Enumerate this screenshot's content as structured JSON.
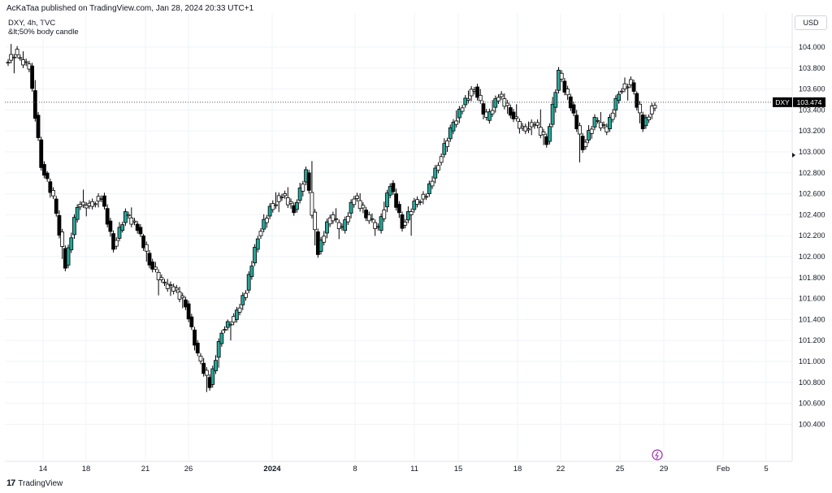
{
  "header": {
    "publisher_line": "AcKaTaa published on TradingView.com, Jan 28, 2024 20:33 UTC+1"
  },
  "legend": {
    "line1": "DXY, 4h, TVC",
    "line2": "&lt;50% body candle"
  },
  "price_axis": {
    "currency_label": "USD"
  },
  "last_price": {
    "symbol": "DXY",
    "value": "103.474"
  },
  "footer": {
    "brand": "TradingView",
    "logo": "tradingview-logo-icon"
  },
  "colors": {
    "bull_fill": "#26a69a",
    "bear_fill": "#000000",
    "neutral_fill": "#ffffff",
    "wick": "#000000",
    "grid": "#f0f3fa"
  },
  "chart_data": {
    "type": "candlestick",
    "timeframe": "4h",
    "symbol": "DXY",
    "ylim": [
      100.3,
      104.45
    ],
    "y_ticks": [
      "104.000",
      "103.800",
      "103.600",
      "103.400",
      "103.200",
      "103.000",
      "102.800",
      "102.600",
      "102.400",
      "102.200",
      "102.000",
      "101.800",
      "101.600",
      "101.400",
      "101.200",
      "101.000",
      "100.800",
      "100.600",
      "100.400"
    ],
    "x_ticks": [
      "14",
      "18",
      "21",
      "26",
      "2024",
      "8",
      "11",
      "15",
      "18",
      "22",
      "25",
      "29",
      "Feb",
      "5"
    ],
    "last_price": 103.474,
    "ohlc_daily_approx": [
      {
        "o": 103.85,
        "h": 104.05,
        "l": 103.7,
        "c": 103.95
      },
      {
        "o": 103.9,
        "h": 103.98,
        "l": 103.78,
        "c": 103.82
      },
      {
        "o": 103.82,
        "h": 103.92,
        "l": 102.85,
        "c": 102.88
      },
      {
        "o": 102.88,
        "h": 102.9,
        "l": 102.5,
        "c": 102.55
      },
      {
        "o": 102.55,
        "h": 102.6,
        "l": 101.8,
        "c": 101.92
      },
      {
        "o": 101.92,
        "h": 102.55,
        "l": 101.88,
        "c": 102.5
      },
      {
        "o": 102.5,
        "h": 102.62,
        "l": 102.4,
        "c": 102.48
      },
      {
        "o": 102.48,
        "h": 102.6,
        "l": 102.42,
        "c": 102.58
      },
      {
        "o": 102.58,
        "h": 102.62,
        "l": 102.05,
        "c": 102.1
      },
      {
        "o": 102.1,
        "h": 102.45,
        "l": 102.08,
        "c": 102.4
      },
      {
        "o": 102.4,
        "h": 102.5,
        "l": 102.25,
        "c": 102.28
      },
      {
        "o": 102.28,
        "h": 102.3,
        "l": 101.85,
        "c": 101.95
      },
      {
        "o": 101.95,
        "h": 102.0,
        "l": 101.6,
        "c": 101.75
      },
      {
        "o": 101.75,
        "h": 101.8,
        "l": 101.6,
        "c": 101.7
      },
      {
        "o": 101.7,
        "h": 101.75,
        "l": 101.45,
        "c": 101.55
      },
      {
        "o": 101.55,
        "h": 101.58,
        "l": 101.0,
        "c": 101.05
      },
      {
        "o": 101.05,
        "h": 101.1,
        "l": 100.62,
        "c": 100.78
      },
      {
        "o": 100.78,
        "h": 101.35,
        "l": 100.68,
        "c": 101.3
      },
      {
        "o": 101.3,
        "h": 101.42,
        "l": 101.15,
        "c": 101.4
      },
      {
        "o": 101.4,
        "h": 101.72,
        "l": 101.35,
        "c": 101.68
      },
      {
        "o": 101.68,
        "h": 102.25,
        "l": 101.65,
        "c": 102.2
      },
      {
        "o": 102.2,
        "h": 102.5,
        "l": 102.15,
        "c": 102.45
      },
      {
        "o": 102.45,
        "h": 102.72,
        "l": 102.35,
        "c": 102.6
      },
      {
        "o": 102.6,
        "h": 102.7,
        "l": 102.4,
        "c": 102.45
      },
      {
        "o": 102.45,
        "h": 102.85,
        "l": 102.4,
        "c": 102.8
      },
      {
        "o": 102.8,
        "h": 103.1,
        "l": 101.9,
        "c": 102.05
      },
      {
        "o": 102.05,
        "h": 102.45,
        "l": 102.0,
        "c": 102.4
      },
      {
        "o": 102.4,
        "h": 102.5,
        "l": 102.15,
        "c": 102.25
      },
      {
        "o": 102.25,
        "h": 102.62,
        "l": 102.2,
        "c": 102.58
      },
      {
        "o": 102.58,
        "h": 102.65,
        "l": 102.35,
        "c": 102.4
      },
      {
        "o": 102.4,
        "h": 102.45,
        "l": 102.18,
        "c": 102.25
      },
      {
        "o": 102.25,
        "h": 102.78,
        "l": 102.2,
        "c": 102.7
      },
      {
        "o": 102.7,
        "h": 102.75,
        "l": 102.25,
        "c": 102.3
      },
      {
        "o": 102.3,
        "h": 102.55,
        "l": 102.1,
        "c": 102.5
      },
      {
        "o": 102.5,
        "h": 102.62,
        "l": 102.45,
        "c": 102.6
      },
      {
        "o": 102.6,
        "h": 102.95,
        "l": 102.55,
        "c": 102.9
      },
      {
        "o": 102.9,
        "h": 103.25,
        "l": 102.85,
        "c": 103.2
      },
      {
        "o": 103.2,
        "h": 103.55,
        "l": 103.15,
        "c": 103.45
      },
      {
        "o": 103.45,
        "h": 103.7,
        "l": 103.4,
        "c": 103.62
      },
      {
        "o": 103.62,
        "h": 103.68,
        "l": 103.25,
        "c": 103.3
      },
      {
        "o": 103.3,
        "h": 103.65,
        "l": 103.25,
        "c": 103.55
      },
      {
        "o": 103.55,
        "h": 103.6,
        "l": 103.3,
        "c": 103.38
      },
      {
        "o": 103.38,
        "h": 103.5,
        "l": 103.15,
        "c": 103.2
      },
      {
        "o": 103.2,
        "h": 103.35,
        "l": 103.12,
        "c": 103.28
      },
      {
        "o": 103.28,
        "h": 103.45,
        "l": 103.0,
        "c": 103.1
      },
      {
        "o": 103.1,
        "h": 103.82,
        "l": 103.05,
        "c": 103.75
      },
      {
        "o": 103.75,
        "h": 103.78,
        "l": 103.4,
        "c": 103.45
      },
      {
        "o": 103.45,
        "h": 103.5,
        "l": 102.78,
        "c": 103.05
      },
      {
        "o": 103.05,
        "h": 103.35,
        "l": 103.0,
        "c": 103.3
      },
      {
        "o": 103.3,
        "h": 103.4,
        "l": 103.18,
        "c": 103.22
      },
      {
        "o": 103.22,
        "h": 103.62,
        "l": 103.15,
        "c": 103.58
      },
      {
        "o": 103.58,
        "h": 103.72,
        "l": 103.45,
        "c": 103.66
      },
      {
        "o": 103.66,
        "h": 103.68,
        "l": 103.15,
        "c": 103.25
      },
      {
        "o": 103.25,
        "h": 103.5,
        "l": 103.2,
        "c": 103.474
      }
    ]
  }
}
